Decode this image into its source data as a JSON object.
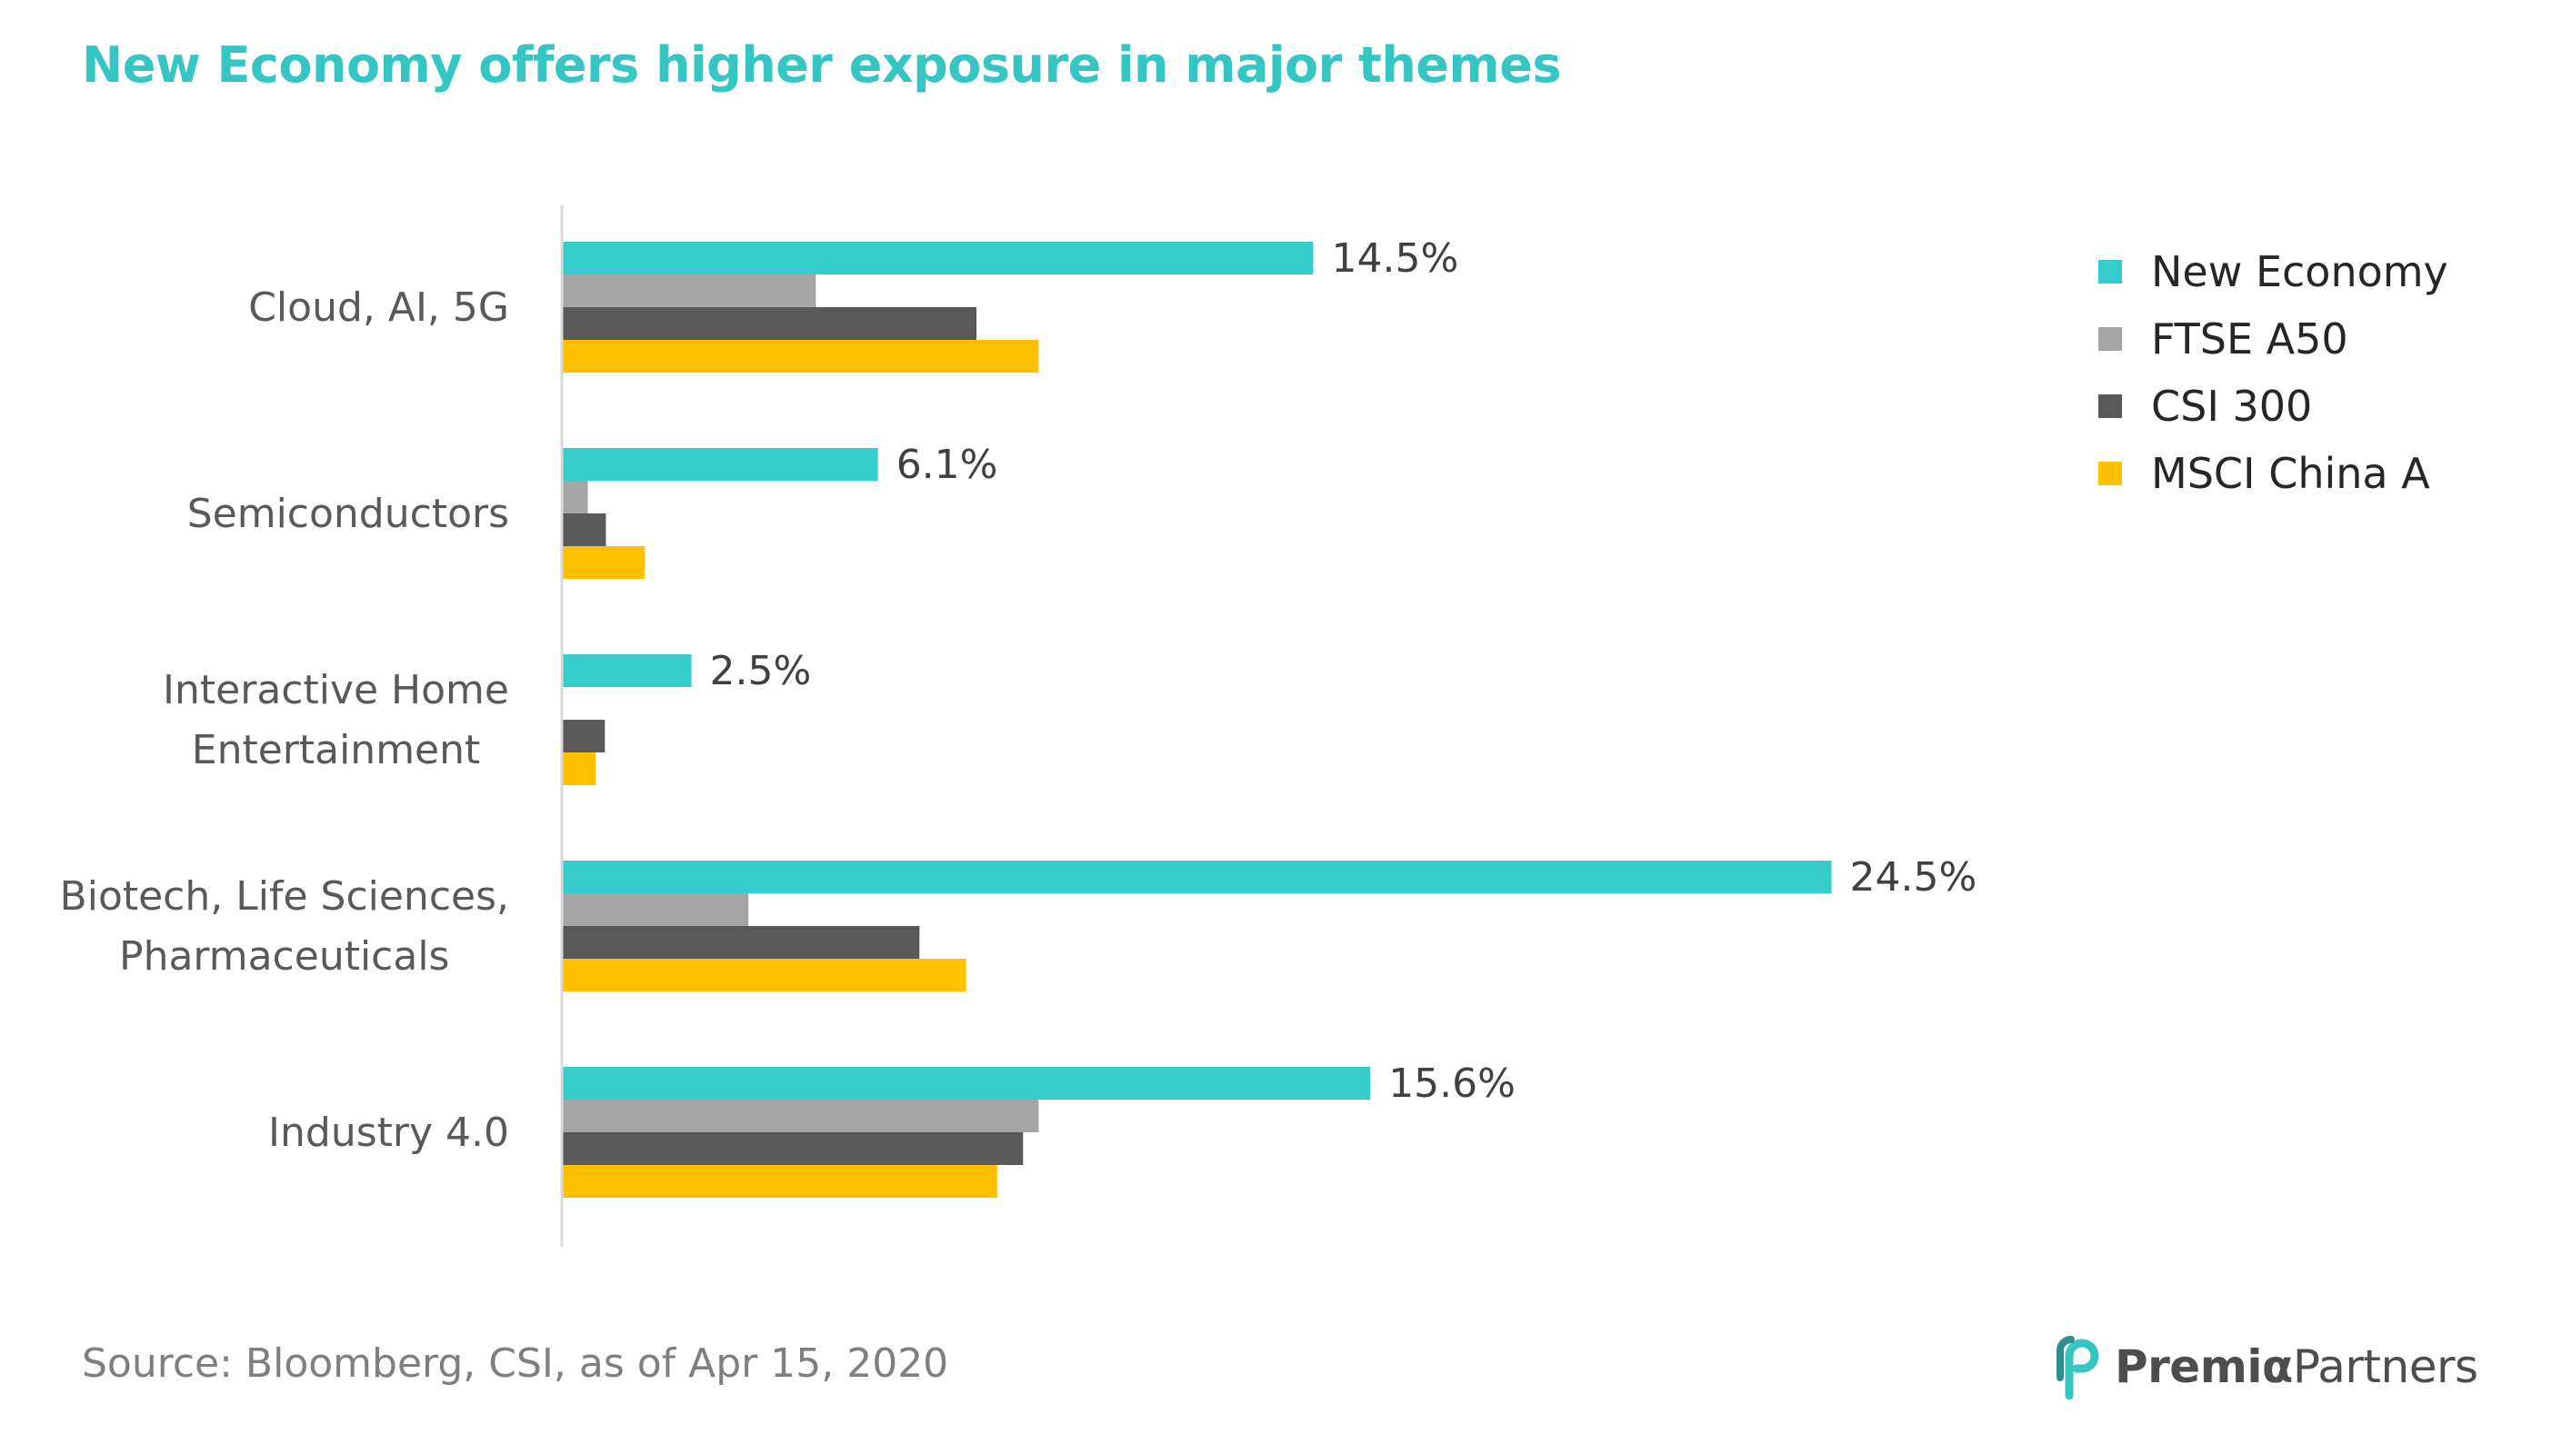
{
  "title": "New Economy offers higher exposure in major themes",
  "source": "Source: Bloomberg, CSI, as of Apr 15, 2020",
  "logo": {
    "text": "PremiαPartners",
    "name_part1": "Premiα",
    "name_part2": "Partners"
  },
  "colors": {
    "title": "#35c6c4",
    "new_economy": "#35cccb",
    "ftse_a50": "#a5a5a5",
    "csi_300": "#595959",
    "msci_china_a": "#ffc000"
  },
  "chart_data": {
    "type": "bar",
    "orientation": "horizontal",
    "categories": [
      [
        "Cloud, AI, 5G"
      ],
      [
        "Semiconductors"
      ],
      [
        "Interactive Home",
        "Entertainment"
      ],
      [
        "Biotech, Life Sciences,",
        "Pharmaceuticals"
      ],
      [
        "Industry 4.0"
      ]
    ],
    "series": [
      {
        "name": "New Economy",
        "color": "#35cccb",
        "values": [
          14.5,
          6.1,
          2.5,
          24.5,
          15.6
        ],
        "labels": [
          "14.5%",
          "6.1%",
          "2.5%",
          "24.5%",
          "15.6%"
        ]
      },
      {
        "name": "FTSE A50",
        "color": "#a5a5a5",
        "values": [
          4.9,
          0.5,
          0.0,
          3.6,
          9.2
        ]
      },
      {
        "name": "CSI 300",
        "color": "#595959",
        "values": [
          8.0,
          0.85,
          0.83,
          6.9,
          8.9
        ]
      },
      {
        "name": "MSCI China A",
        "color": "#ffc000",
        "values": [
          9.2,
          1.6,
          0.65,
          7.8,
          8.4
        ]
      }
    ],
    "xlim": [
      0,
      25
    ],
    "legend_position": "top-right",
    "grid": false
  }
}
